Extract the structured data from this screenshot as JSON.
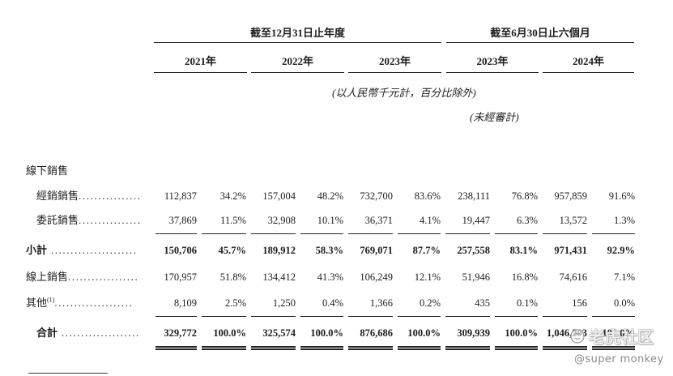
{
  "header": {
    "period_full_year": "截至12月31日止年度",
    "period_half_year": "截至6月30日止六個月",
    "years": [
      "2021年",
      "2022年",
      "2023年",
      "2023年",
      "2024年"
    ],
    "unit_note": "(以人民幣千元計，百分比除外)",
    "unaudited_note": "(未經審計)"
  },
  "sections": {
    "offline_sales": "線下銷售"
  },
  "rows": {
    "distribution": {
      "label": "經銷銷售",
      "leader": "................",
      "values": [
        "112,837",
        "34.2%",
        "157,004",
        "48.2%",
        "732,700",
        "83.6%",
        "238,111",
        "76.8%",
        "957,859",
        "91.6%"
      ]
    },
    "consignment": {
      "label": "委託銷售",
      "leader": "................",
      "values": [
        "37,869",
        "11.5%",
        "32,908",
        "10.1%",
        "36,371",
        "4.1%",
        "19,447",
        "6.3%",
        "13,572",
        "1.3%"
      ]
    },
    "subtotal": {
      "label": "小計",
      "leader": " ......................",
      "values": [
        "150,706",
        "45.7%",
        "189,912",
        "58.3%",
        "769,071",
        "87.7%",
        "257,558",
        "83.1%",
        "971,431",
        "92.9%"
      ]
    },
    "online": {
      "label": "線上銷售",
      "leader": "..................",
      "values": [
        "170,957",
        "51.8%",
        "134,412",
        "41.3%",
        "106,249",
        "12.1%",
        "51,946",
        "16.8%",
        "74,616",
        "7.1%"
      ]
    },
    "others": {
      "label": "其他",
      "note": "(1)",
      "leader": "....................",
      "values": [
        "8,109",
        "2.5%",
        "1,250",
        "0.4%",
        "1,366",
        "0.2%",
        "435",
        "0.1%",
        "156",
        "0.0%"
      ]
    },
    "total": {
      "label": "合計",
      "leader": " ....................",
      "values": [
        "329,772",
        "100.0%",
        "325,574",
        "100.0%",
        "876,686",
        "100.0%",
        "309,939",
        "100.0%",
        "1,046,203",
        "100.0%"
      ]
    }
  },
  "watermark": {
    "brand": "老虎社区",
    "handle": "@super monkey",
    "logo_icon": "tiger-logo-icon"
  }
}
